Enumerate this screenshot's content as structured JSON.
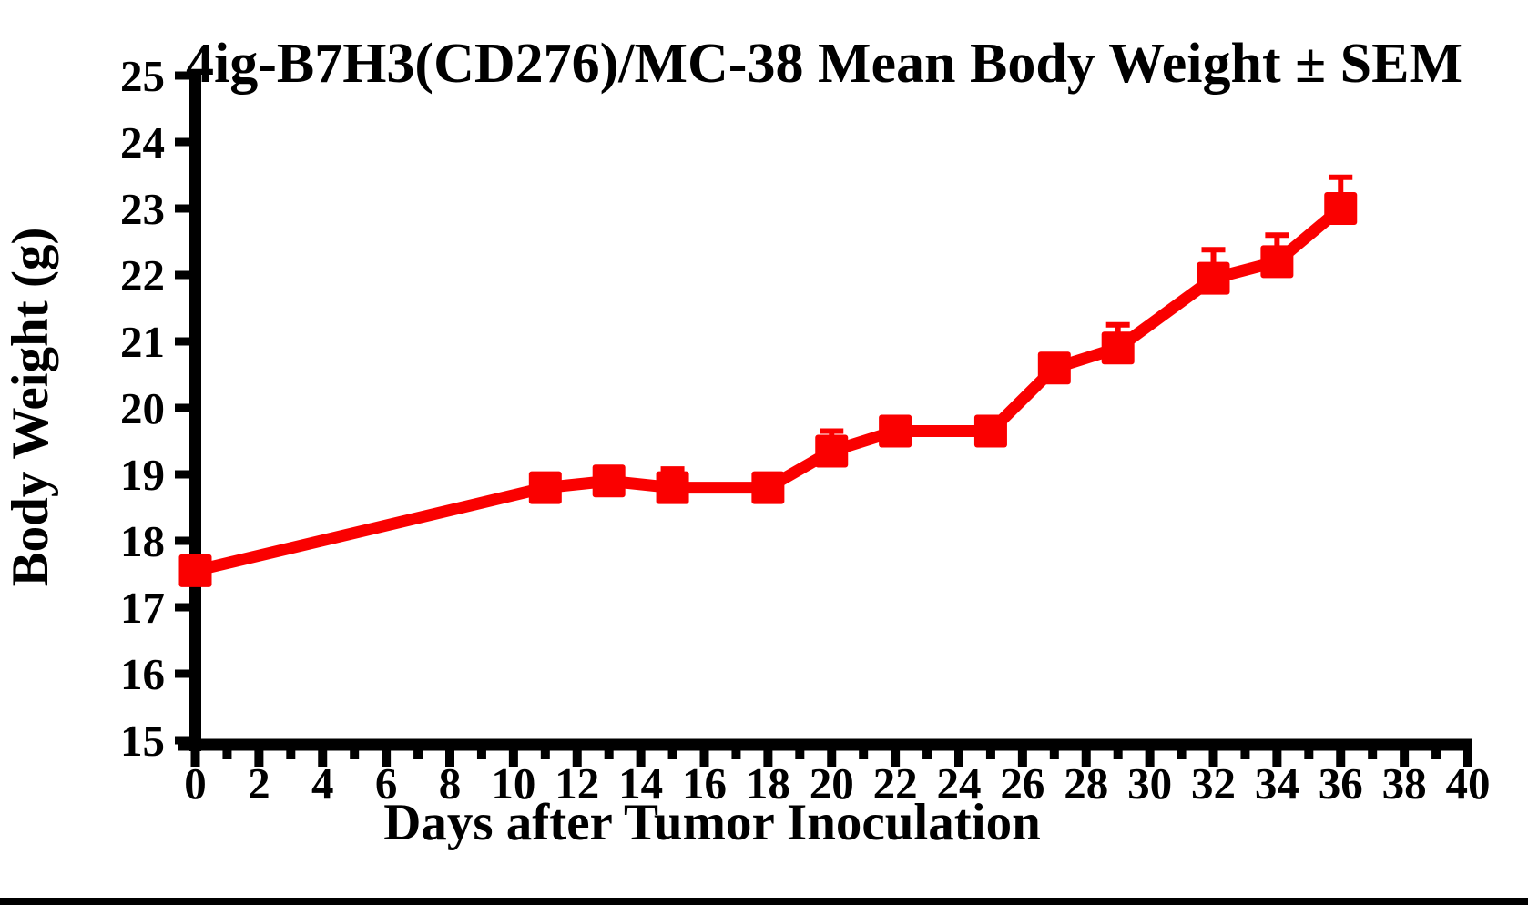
{
  "chart_data": {
    "type": "line",
    "title": "4ig-B7H3(CD276)/MC-38 Mean Body Weight ± SEM",
    "xlabel": "Days after Tumor Inoculation",
    "ylabel": "Body Weight (g)",
    "xlim": [
      0,
      40
    ],
    "ylim": [
      15,
      25
    ],
    "x_major_ticks": [
      0,
      2,
      4,
      6,
      8,
      10,
      12,
      14,
      16,
      18,
      20,
      22,
      24,
      26,
      28,
      30,
      32,
      34,
      36,
      38,
      40
    ],
    "x_minor_ticks": [
      1,
      3,
      5,
      7,
      9,
      11,
      13,
      15,
      17,
      19,
      21,
      23,
      25,
      27,
      29,
      31,
      33,
      35,
      37,
      39
    ],
    "y_ticks": [
      15,
      16,
      17,
      18,
      19,
      20,
      21,
      22,
      23,
      24,
      25
    ],
    "grid": false,
    "legend": "none",
    "series": [
      {
        "name": "Mean Body Weight",
        "color": "#fa0000",
        "marker": "square",
        "x": [
          0,
          11,
          13,
          15,
          18,
          20,
          22,
          25,
          27,
          29,
          32,
          34,
          36
        ],
        "y": [
          17.55,
          18.8,
          18.9,
          18.8,
          18.8,
          19.35,
          19.65,
          19.65,
          20.6,
          20.9,
          21.95,
          22.2,
          23.0
        ],
        "sem_upper": [
          0,
          0,
          0,
          0.28,
          0,
          0.3,
          0,
          0,
          0,
          0.35,
          0.43,
          0.4,
          0.47
        ]
      }
    ]
  }
}
